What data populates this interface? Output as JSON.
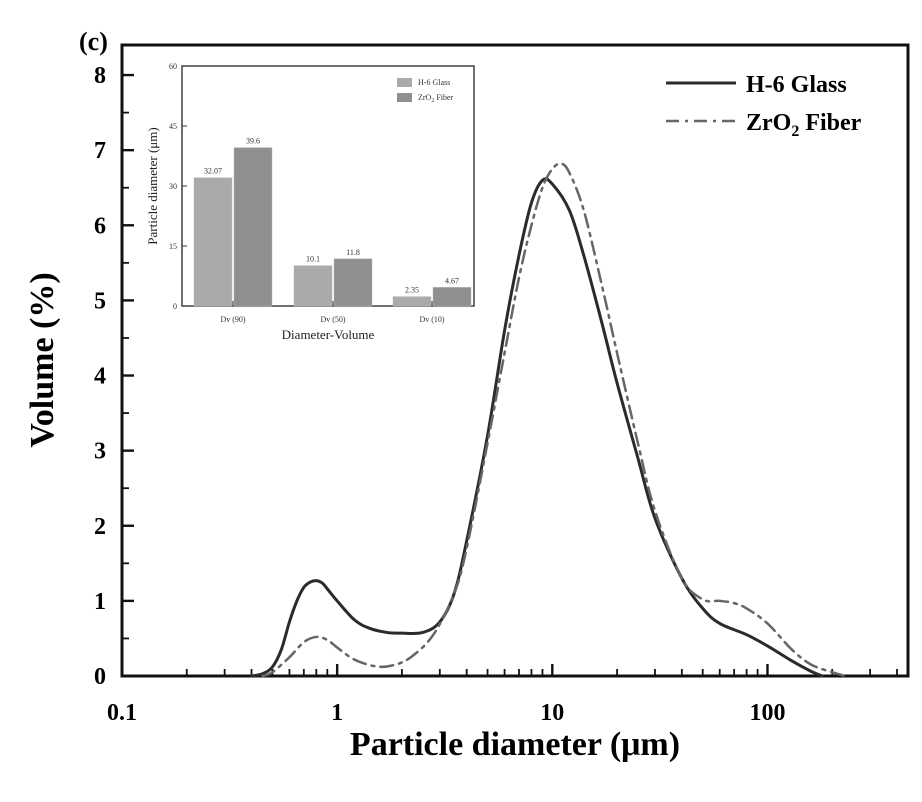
{
  "colors": {
    "main_series_0": "#2b2b2b",
    "main_series_1": "#666666",
    "inset_bar_0": "#aaaaaa",
    "inset_bar_1": "#8f8f8f",
    "axis": "#111111"
  },
  "panel_label": "(c)",
  "chart_data": [
    {
      "type": "line",
      "title": "",
      "xlabel": "Particle diameter (μm)",
      "ylabel": "Volume (%)",
      "xscale": "log",
      "xlim": [
        0.1,
        450
      ],
      "ylim": [
        0,
        8.4
      ],
      "x_ticks": [
        0.1,
        1,
        10,
        100
      ],
      "x_tick_labels": [
        "0.1",
        "1",
        "10",
        "100"
      ],
      "y_ticks": [
        0,
        1,
        2,
        3,
        4,
        5,
        6,
        7,
        8
      ],
      "y_tick_labels": [
        "0",
        "1",
        "2",
        "3",
        "4",
        "5",
        "6",
        "7",
        "8"
      ],
      "legend_position": "top-right",
      "series": [
        {
          "name": "H-6  Glass",
          "line_style": "solid",
          "points": [
            [
              0.4,
              0.0
            ],
            [
              0.45,
              0.03
            ],
            [
              0.5,
              0.12
            ],
            [
              0.55,
              0.35
            ],
            [
              0.6,
              0.72
            ],
            [
              0.65,
              1.0
            ],
            [
              0.7,
              1.18
            ],
            [
              0.75,
              1.25
            ],
            [
              0.8,
              1.27
            ],
            [
              0.85,
              1.24
            ],
            [
              0.9,
              1.16
            ],
            [
              1.0,
              1.0
            ],
            [
              1.2,
              0.75
            ],
            [
              1.4,
              0.64
            ],
            [
              1.7,
              0.58
            ],
            [
              2.0,
              0.57
            ],
            [
              2.5,
              0.58
            ],
            [
              3.0,
              0.72
            ],
            [
              3.5,
              1.1
            ],
            [
              4.0,
              1.8
            ],
            [
              5.0,
              3.2
            ],
            [
              6.0,
              4.6
            ],
            [
              7.0,
              5.6
            ],
            [
              8.0,
              6.3
            ],
            [
              9.0,
              6.6
            ],
            [
              10.0,
              6.55
            ],
            [
              12.0,
              6.2
            ],
            [
              14.0,
              5.6
            ],
            [
              17.0,
              4.7
            ],
            [
              20.0,
              3.9
            ],
            [
              25.0,
              2.9
            ],
            [
              30.0,
              2.1
            ],
            [
              40.0,
              1.3
            ],
            [
              50.0,
              0.9
            ],
            [
              60.0,
              0.7
            ],
            [
              80.0,
              0.55
            ],
            [
              100.0,
              0.4
            ],
            [
              130.0,
              0.2
            ],
            [
              160.0,
              0.06
            ],
            [
              180.0,
              0.0
            ]
          ]
        },
        {
          "name": "ZrO2 Fiber",
          "line_style": "dash-dot",
          "points": [
            [
              0.45,
              0.0
            ],
            [
              0.5,
              0.05
            ],
            [
              0.6,
              0.25
            ],
            [
              0.7,
              0.45
            ],
            [
              0.8,
              0.52
            ],
            [
              0.9,
              0.48
            ],
            [
              1.0,
              0.38
            ],
            [
              1.2,
              0.22
            ],
            [
              1.5,
              0.13
            ],
            [
              1.8,
              0.14
            ],
            [
              2.2,
              0.25
            ],
            [
              2.8,
              0.55
            ],
            [
              3.5,
              1.1
            ],
            [
              4.0,
              1.7
            ],
            [
              5.0,
              3.1
            ],
            [
              6.0,
              4.3
            ],
            [
              7.0,
              5.3
            ],
            [
              8.0,
              6.0
            ],
            [
              9.0,
              6.5
            ],
            [
              10.0,
              6.75
            ],
            [
              11.0,
              6.82
            ],
            [
              12.0,
              6.7
            ],
            [
              14.0,
              6.2
            ],
            [
              17.0,
              5.2
            ],
            [
              20.0,
              4.3
            ],
            [
              25.0,
              3.1
            ],
            [
              30.0,
              2.2
            ],
            [
              40.0,
              1.3
            ],
            [
              50.0,
              1.02
            ],
            [
              60.0,
              1.0
            ],
            [
              70.0,
              0.97
            ],
            [
              80.0,
              0.9
            ],
            [
              100.0,
              0.7
            ],
            [
              130.0,
              0.35
            ],
            [
              160.0,
              0.15
            ],
            [
              200.0,
              0.05
            ],
            [
              230.0,
              0.0
            ]
          ]
        }
      ]
    },
    {
      "type": "bar",
      "title": "",
      "xlabel": "Diameter-Volume",
      "ylabel": "Particle diameter (μm)",
      "ylim": [
        0,
        60
      ],
      "y_ticks": [
        0,
        15,
        30,
        45,
        60
      ],
      "y_tick_labels": [
        "0",
        "15",
        "30",
        "45",
        "60"
      ],
      "legend_position": "top-right",
      "categories": [
        "Dv (90)",
        "Dv (50)",
        "Dv (10)"
      ],
      "series": [
        {
          "name": "H-6  Glass",
          "values": [
            32.07,
            10.1,
            2.35
          ],
          "value_labels": [
            "32.07",
            "10.1",
            "2.35"
          ]
        },
        {
          "name": "ZrO2 Fiber",
          "values": [
            39.6,
            11.8,
            4.67
          ],
          "value_labels": [
            "39.6",
            "11.8",
            "4.67"
          ]
        }
      ]
    }
  ]
}
